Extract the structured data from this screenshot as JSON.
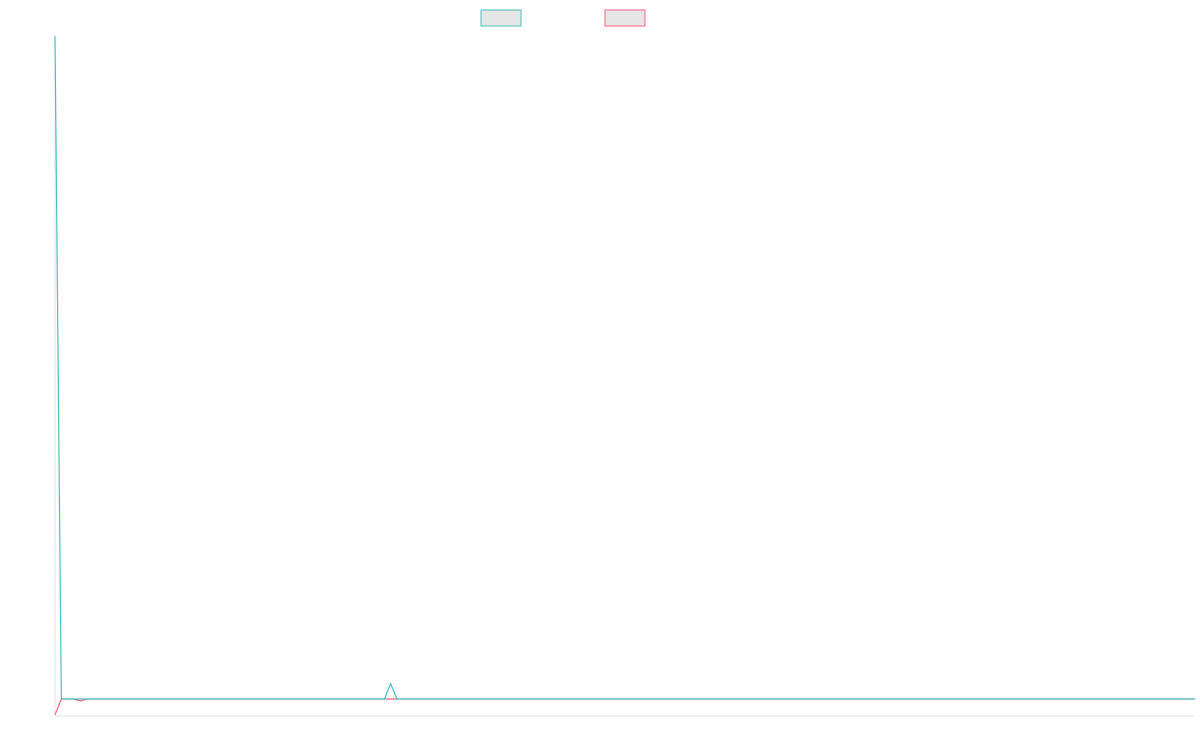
{
  "chart_data": {
    "type": "line",
    "title": "",
    "xlabel": "",
    "ylabel": "",
    "grid": false,
    "legend_position": "top-center",
    "colors": {
      "series_1": "#4bc0c0",
      "series_2": "#ff6384",
      "legend_fill": "#e6e6e6",
      "axis": "#e6e6e6"
    },
    "xlim": [
      0,
      180
    ],
    "ylim": [
      0,
      100
    ],
    "series": [
      {
        "color": "#4bc0c0",
        "x": [
          0,
          1,
          2,
          3,
          4,
          5,
          6,
          52,
          53,
          54,
          55,
          56,
          180
        ],
        "y": [
          100,
          0,
          0,
          0,
          0,
          0,
          0,
          0,
          2.3,
          0,
          0,
          0,
          0
        ]
      },
      {
        "color": "#ff6384",
        "x": [
          0,
          1,
          2,
          3,
          4,
          5,
          6,
          180
        ],
        "y": [
          -2.4,
          0,
          0,
          0,
          -0.3,
          0,
          0,
          0
        ]
      }
    ]
  }
}
